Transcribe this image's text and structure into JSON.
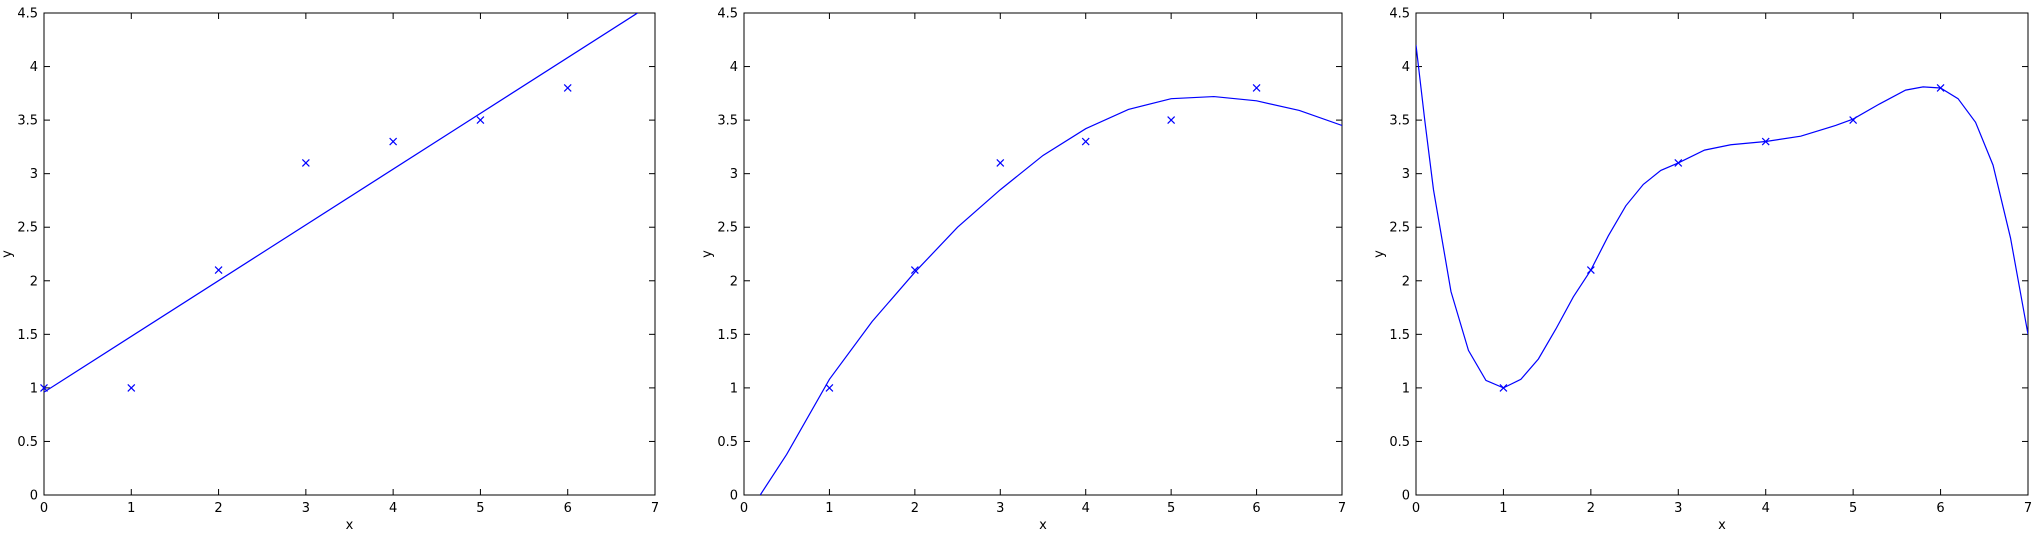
{
  "chart_data": [
    {
      "type": "scatter",
      "title": "",
      "xlabel": "x",
      "ylabel": "y",
      "xlim": [
        0,
        7
      ],
      "ylim": [
        0,
        4.5
      ],
      "xticks": [
        "0",
        "1",
        "2",
        "3",
        "4",
        "5",
        "6",
        "7"
      ],
      "yticks": [
        "0",
        "0.5",
        "1",
        "1.5",
        "2",
        "2.5",
        "3",
        "3.5",
        "4",
        "4.5"
      ],
      "grid": false,
      "color": "#0000ff",
      "points": {
        "x": [
          0,
          1,
          2,
          3,
          4,
          5,
          6
        ],
        "y": [
          1.0,
          1.0,
          2.1,
          3.1,
          3.3,
          3.5,
          3.8
        ]
      },
      "fit_curve": {
        "x": [
          0,
          6.8
        ],
        "y": [
          0.96,
          4.5
        ]
      }
    },
    {
      "type": "scatter",
      "title": "",
      "xlabel": "x",
      "ylabel": "y",
      "xlim": [
        0,
        7
      ],
      "ylim": [
        0,
        4.5
      ],
      "xticks": [
        "0",
        "1",
        "2",
        "3",
        "4",
        "5",
        "6",
        "7"
      ],
      "yticks": [
        "0",
        "0.5",
        "1",
        "1.5",
        "2",
        "2.5",
        "3",
        "3.5",
        "4",
        "4.5"
      ],
      "grid": false,
      "color": "#0000ff",
      "points": {
        "x": [
          1,
          2,
          3,
          4,
          5,
          6
        ],
        "y": [
          1.0,
          2.1,
          3.1,
          3.3,
          3.5,
          3.8
        ]
      },
      "fit_curve": {
        "x": [
          0.19,
          0.5,
          1,
          1.5,
          2,
          2.5,
          3,
          3.5,
          4,
          4.5,
          5,
          5.5,
          6,
          6.5,
          7
        ],
        "y": [
          0.0,
          0.38,
          1.08,
          1.62,
          2.08,
          2.5,
          2.85,
          3.17,
          3.42,
          3.6,
          3.7,
          3.72,
          3.68,
          3.59,
          3.45
        ]
      }
    },
    {
      "type": "scatter",
      "title": "",
      "xlabel": "x",
      "ylabel": "y",
      "xlim": [
        0,
        7
      ],
      "ylim": [
        0,
        4.5
      ],
      "xticks": [
        "0",
        "1",
        "2",
        "3",
        "4",
        "5",
        "6",
        "7"
      ],
      "yticks": [
        "0",
        "0.5",
        "1",
        "1.5",
        "2",
        "2.5",
        "3",
        "3.5",
        "4",
        "4.5"
      ],
      "grid": false,
      "color": "#0000ff",
      "points": {
        "x": [
          1,
          2,
          3,
          4,
          5,
          6
        ],
        "y": [
          1.0,
          2.1,
          3.1,
          3.3,
          3.5,
          3.8
        ]
      },
      "fit_curve": {
        "x": [
          0,
          0.1,
          0.2,
          0.4,
          0.6,
          0.8,
          1.0,
          1.2,
          1.4,
          1.6,
          1.8,
          2.0,
          2.2,
          2.4,
          2.6,
          2.8,
          3.0,
          3.3,
          3.6,
          4.0,
          4.4,
          4.8,
          5.0,
          5.3,
          5.6,
          5.8,
          6.0,
          6.2,
          6.4,
          6.6,
          6.8,
          7.0
        ],
        "y": [
          4.2,
          3.5,
          2.85,
          1.9,
          1.35,
          1.07,
          1.0,
          1.08,
          1.27,
          1.55,
          1.85,
          2.1,
          2.42,
          2.7,
          2.9,
          3.03,
          3.1,
          3.22,
          3.27,
          3.3,
          3.35,
          3.45,
          3.51,
          3.65,
          3.78,
          3.81,
          3.8,
          3.7,
          3.48,
          3.08,
          2.4,
          1.5
        ]
      }
    }
  ]
}
